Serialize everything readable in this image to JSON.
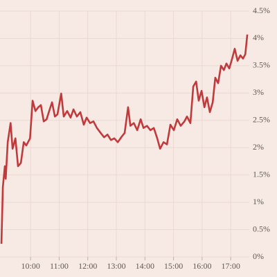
{
  "chart_data": {
    "type": "line",
    "color": "#c0393b",
    "grid": true,
    "x": [
      8.98,
      9.03,
      9.1,
      9.13,
      9.2,
      9.3,
      9.37,
      9.47,
      9.56,
      9.66,
      9.76,
      9.85,
      9.98,
      10.07,
      10.17,
      10.27,
      10.36,
      10.46,
      10.56,
      10.65,
      10.75,
      10.85,
      10.94,
      11.07,
      11.16,
      11.28,
      11.4,
      11.5,
      11.62,
      11.74,
      11.86,
      11.96,
      12.08,
      12.2,
      12.32,
      12.45,
      12.57,
      12.69,
      12.81,
      12.93,
      13.05,
      13.17,
      13.29,
      13.41,
      13.49,
      13.61,
      13.73,
      13.85,
      13.95,
      14.07,
      14.19,
      14.31,
      14.43,
      14.53,
      14.65,
      14.77,
      14.89,
      15.01,
      15.13,
      15.25,
      15.38,
      15.47,
      15.59,
      15.69,
      15.79,
      15.88,
      15.98,
      16.08,
      16.17,
      16.27,
      16.37,
      16.46,
      16.56,
      16.66,
      16.76,
      16.85,
      16.95,
      17.05,
      17.14,
      17.24,
      17.34,
      17.43,
      17.51,
      17.58
    ],
    "values": [
      0.24,
      1.28,
      1.66,
      1.43,
      2.1,
      2.45,
      1.98,
      2.17,
      1.66,
      1.72,
      2.1,
      2.04,
      2.17,
      2.86,
      2.67,
      2.74,
      2.78,
      2.48,
      2.52,
      2.67,
      2.83,
      2.57,
      2.61,
      2.99,
      2.57,
      2.67,
      2.55,
      2.7,
      2.57,
      2.65,
      2.42,
      2.55,
      2.45,
      2.48,
      2.36,
      2.27,
      2.19,
      2.24,
      2.14,
      2.17,
      2.1,
      2.19,
      2.27,
      2.74,
      2.4,
      2.45,
      2.32,
      2.52,
      2.36,
      2.4,
      2.32,
      2.36,
      2.17,
      1.98,
      2.1,
      2.06,
      2.42,
      2.32,
      2.52,
      2.4,
      2.48,
      2.57,
      2.45,
      3.12,
      3.21,
      2.86,
      3.04,
      2.74,
      2.92,
      2.65,
      2.83,
      3.28,
      3.18,
      3.5,
      3.42,
      3.54,
      3.45,
      3.63,
      3.81,
      3.59,
      3.69,
      3.63,
      3.71,
      4.07
    ],
    "xlim": [
      8.93,
      17.65
    ],
    "xticks": [
      {
        "value": 10,
        "label": "10:00"
      },
      {
        "value": 11,
        "label": "11:00"
      },
      {
        "value": 12,
        "label": "12:00"
      },
      {
        "value": 13,
        "label": "13:00"
      },
      {
        "value": 14,
        "label": "14:00"
      },
      {
        "value": 15,
        "label": "15:00"
      },
      {
        "value": 16,
        "label": "16:00"
      },
      {
        "value": 17,
        "label": "17:00"
      }
    ],
    "ylim": [
      0,
      4.5
    ],
    "yticks": [
      {
        "value": 0,
        "label": "0%"
      },
      {
        "value": 0.5,
        "label": "0.5%"
      },
      {
        "value": 1,
        "label": "1%"
      },
      {
        "value": 1.5,
        "label": "1.5%"
      },
      {
        "value": 2,
        "label": "2%"
      },
      {
        "value": 2.5,
        "label": "2.5%"
      },
      {
        "value": 3,
        "label": "3%"
      },
      {
        "value": 3.5,
        "label": "3.5%"
      },
      {
        "value": 4,
        "label": "4%"
      },
      {
        "value": 4.5,
        "label": "4.5%"
      }
    ]
  }
}
